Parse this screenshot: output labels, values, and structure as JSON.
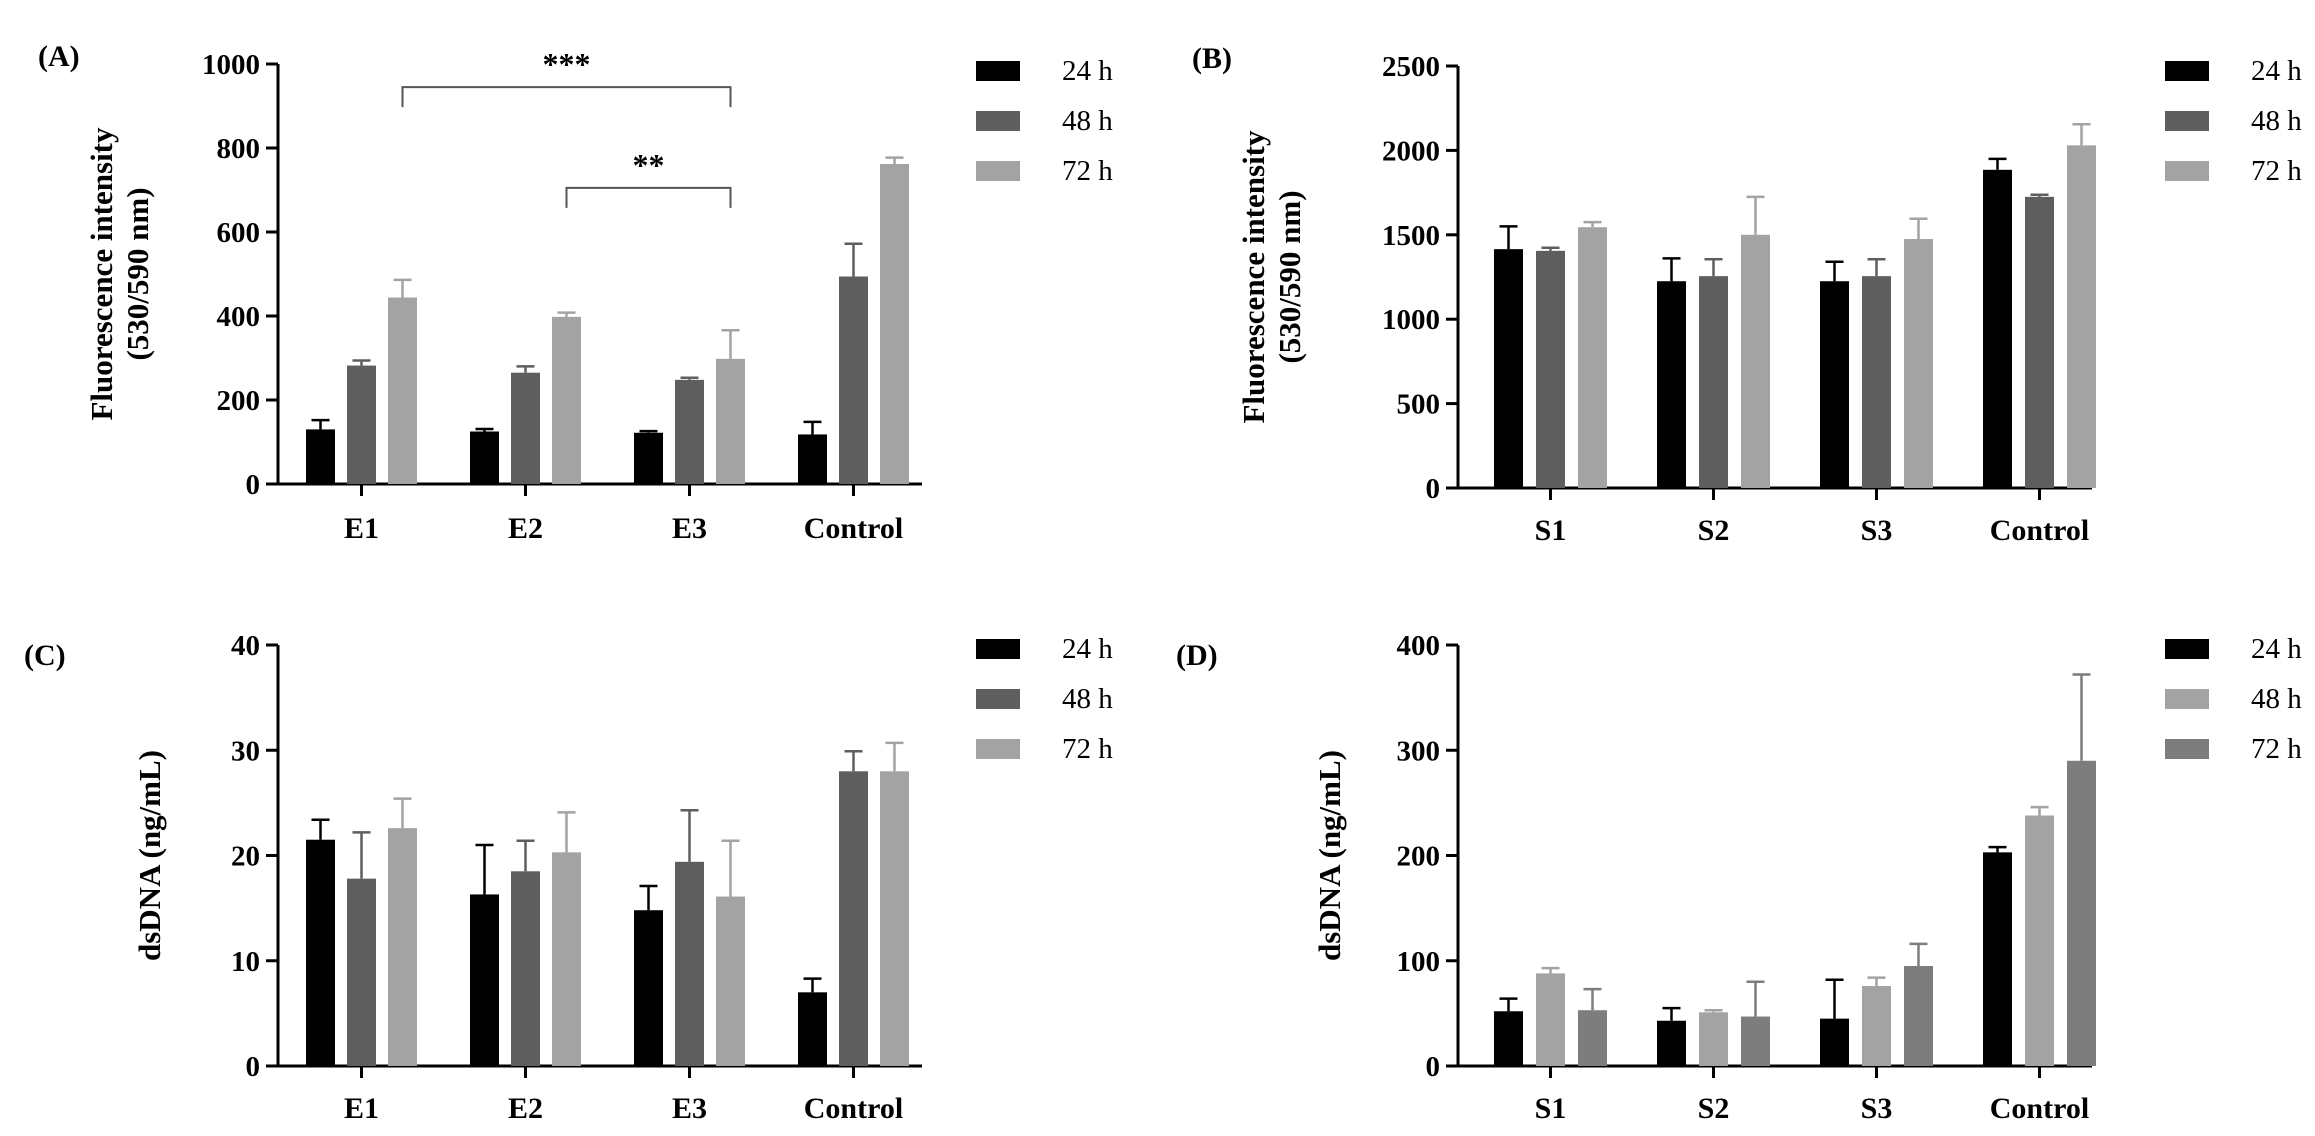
{
  "chart_data": [
    {
      "id": "A",
      "type": "bar",
      "panel_label": "(A)",
      "title": "",
      "ylabel": [
        "Fluorescence intensity",
        "(530/590 nm)"
      ],
      "xlabel": "",
      "categories": [
        "E1",
        "E2",
        "E3",
        "Control"
      ],
      "ylim": [
        0,
        1000
      ],
      "yticks": [
        0,
        200,
        400,
        600,
        800,
        1000
      ],
      "legend": [
        "24 h",
        "48 h",
        "72 h"
      ],
      "colors": [
        "#000000",
        "#5e5e5e",
        "#a3a3a3"
      ],
      "series": [
        {
          "name": "24 h",
          "values": [
            130,
            125,
            122,
            118
          ],
          "errors": [
            22,
            6,
            4,
            30
          ]
        },
        {
          "name": "48 h",
          "values": [
            282,
            265,
            248,
            494
          ],
          "errors": [
            12,
            15,
            5,
            78
          ]
        },
        {
          "name": "72 h",
          "values": [
            444,
            398,
            298,
            762
          ],
          "errors": [
            42,
            10,
            68,
            15
          ]
        }
      ],
      "significance": [
        {
          "label": "***",
          "from": [
            0,
            2
          ],
          "to": [
            2,
            2
          ],
          "y": 945
        },
        {
          "label": "**",
          "from": [
            1,
            2
          ],
          "to": [
            2,
            2
          ],
          "y": 705
        }
      ]
    },
    {
      "id": "B",
      "type": "bar",
      "panel_label": "(B)",
      "title": "",
      "ylabel": [
        "Fluorescence intensity",
        "(530/590 nm)"
      ],
      "xlabel": "",
      "categories": [
        "S1",
        "S2",
        "S3",
        "Control"
      ],
      "ylim": [
        0,
        2500
      ],
      "yticks": [
        0,
        500,
        1000,
        1500,
        2000,
        2500
      ],
      "legend": [
        "24 h",
        "48 h",
        "72 h"
      ],
      "colors": [
        "#000000",
        "#5e5e5e",
        "#a3a3a3"
      ],
      "series": [
        {
          "name": "24 h",
          "values": [
            1415,
            1225,
            1225,
            1885
          ],
          "errors": [
            135,
            135,
            115,
            65
          ]
        },
        {
          "name": "48 h",
          "values": [
            1405,
            1255,
            1255,
            1725
          ],
          "errors": [
            18,
            100,
            100,
            12
          ]
        },
        {
          "name": "72 h",
          "values": [
            1545,
            1500,
            1475,
            2030
          ],
          "errors": [
            30,
            225,
            120,
            125
          ]
        }
      ],
      "significance": []
    },
    {
      "id": "C",
      "type": "bar",
      "panel_label": "(C)",
      "title": "",
      "ylabel": [
        "dsDNA (ng/mL)"
      ],
      "xlabel": "",
      "categories": [
        "E1",
        "E2",
        "E3",
        "Control"
      ],
      "ylim": [
        0,
        40
      ],
      "yticks": [
        0,
        10,
        20,
        30,
        40
      ],
      "legend": [
        "24 h",
        "48 h",
        "72 h"
      ],
      "colors": [
        "#000000",
        "#5e5e5e",
        "#a3a3a3"
      ],
      "series": [
        {
          "name": "24 h",
          "values": [
            21.5,
            16.3,
            14.8,
            7.0
          ],
          "errors": [
            1.9,
            4.7,
            2.3,
            1.3
          ]
        },
        {
          "name": "48 h",
          "values": [
            17.8,
            18.5,
            19.4,
            28.0
          ],
          "errors": [
            4.4,
            2.9,
            4.9,
            1.9
          ]
        },
        {
          "name": "72 h",
          "values": [
            22.6,
            20.3,
            16.1,
            28.0
          ],
          "errors": [
            2.8,
            3.8,
            5.3,
            2.7
          ]
        }
      ],
      "significance": []
    },
    {
      "id": "D",
      "type": "bar",
      "panel_label": "(D)",
      "title": "",
      "ylabel": [
        "dsDNA (ng/mL)"
      ],
      "xlabel": "",
      "categories": [
        "S1",
        "S2",
        "S3",
        "Control"
      ],
      "ylim": [
        0,
        400
      ],
      "yticks": [
        0,
        100,
        200,
        300,
        400
      ],
      "legend": [
        "24 h",
        "48 h",
        "72 h"
      ],
      "colors": [
        "#000000",
        "#a3a3a3",
        "#7d7d7d"
      ],
      "series": [
        {
          "name": "24 h",
          "values": [
            52,
            43,
            45,
            203
          ],
          "errors": [
            12,
            12,
            37,
            5
          ]
        },
        {
          "name": "48 h",
          "values": [
            88,
            51,
            76,
            238
          ],
          "errors": [
            5,
            2,
            8,
            8
          ]
        },
        {
          "name": "72 h",
          "values": [
            53,
            47,
            95,
            290
          ],
          "errors": [
            20,
            33,
            21,
            82
          ]
        }
      ],
      "significance": []
    }
  ]
}
